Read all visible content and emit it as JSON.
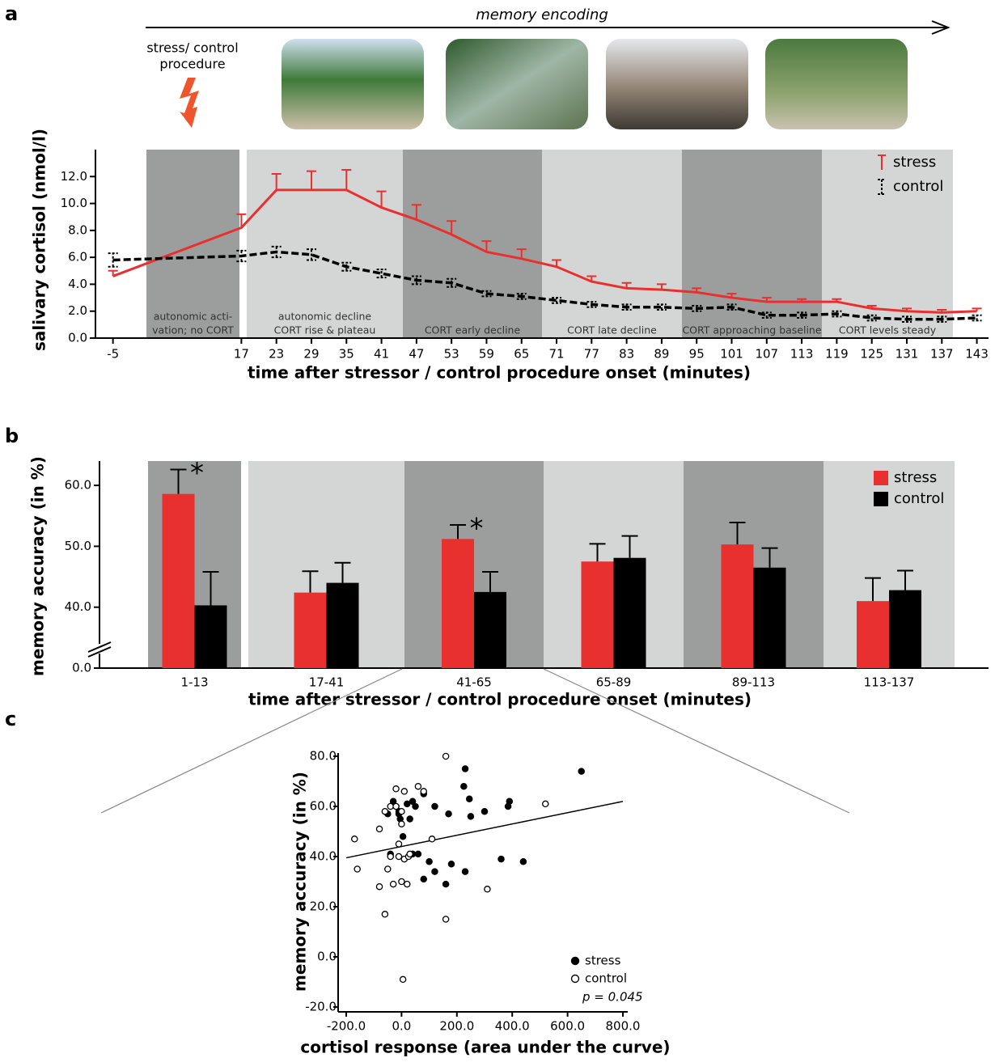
{
  "panel_labels": [
    "a",
    "b",
    "c"
  ],
  "header": {
    "arrow_label": "memory encoding",
    "procedure_label": [
      "stress/ control",
      "procedure"
    ]
  },
  "chart_data": [
    {
      "type": "line",
      "y_label": "salivary cortisol (nmol/l)",
      "x_label": "time after stressor / control procedure onset (minutes)",
      "x": [
        -5,
        17,
        23,
        29,
        35,
        41,
        47,
        53,
        59,
        65,
        71,
        77,
        83,
        89,
        95,
        101,
        107,
        113,
        119,
        125,
        131,
        137,
        143
      ],
      "series": [
        {
          "name": "stress",
          "color": "#e8302f",
          "line_style": "solid",
          "values": [
            4.6,
            8.2,
            11.0,
            11.0,
            11.0,
            9.7,
            8.8,
            7.7,
            6.4,
            5.9,
            5.3,
            4.2,
            3.7,
            3.6,
            3.4,
            3.0,
            2.7,
            2.7,
            2.7,
            2.2,
            2.0,
            1.9,
            2.0
          ],
          "errors": [
            0.4,
            1.0,
            1.2,
            1.4,
            1.5,
            1.2,
            1.1,
            1.0,
            0.8,
            0.7,
            0.5,
            0.4,
            0.4,
            0.4,
            0.3,
            0.3,
            0.3,
            0.2,
            0.2,
            0.2,
            0.2,
            0.2,
            0.2
          ]
        },
        {
          "name": "control",
          "color": "#000000",
          "line_style": "dashed",
          "values": [
            5.8,
            6.1,
            6.4,
            6.2,
            5.3,
            4.8,
            4.3,
            4.1,
            3.3,
            3.1,
            2.8,
            2.5,
            2.3,
            2.3,
            2.2,
            2.3,
            1.7,
            1.7,
            1.8,
            1.5,
            1.4,
            1.4,
            1.5
          ],
          "errors": [
            0.5,
            0.4,
            0.4,
            0.4,
            0.3,
            0.3,
            0.3,
            0.3,
            0.2,
            0.2,
            0.2,
            0.2,
            0.2,
            0.2,
            0.2,
            0.2,
            0.2,
            0.2,
            0.2,
            0.2,
            0.2,
            0.2,
            0.2
          ]
        }
      ],
      "xlim": [
        -8,
        145
      ],
      "ylim": [
        0,
        14
      ],
      "xticks": [
        -5,
        17,
        23,
        29,
        35,
        41,
        47,
        53,
        59,
        65,
        71,
        77,
        83,
        89,
        95,
        101,
        107,
        113,
        119,
        125,
        131,
        137,
        143
      ],
      "yticks": [
        {
          "value": 0,
          "label": "0.0"
        },
        {
          "value": 2,
          "label": "2.0"
        },
        {
          "value": 4,
          "label": "4.0"
        },
        {
          "value": 6,
          "label": "6.0"
        },
        {
          "value": 8,
          "label": "8.0"
        },
        {
          "value": 10,
          "label": "10.0"
        },
        {
          "value": 12,
          "label": "12.0"
        }
      ],
      "phases": [
        [
          "autonomic acti-",
          "vation; no CORT"
        ],
        [
          "autonomic decline",
          "CORT rise & plateau"
        ],
        [
          "CORT early decline"
        ],
        [
          "CORT late decline"
        ],
        [
          "CORT approaching baseline"
        ],
        [
          "CORT levels steady"
        ]
      ],
      "legend": "upper right"
    },
    {
      "type": "bar",
      "y_label": "memory accuracy (in %)",
      "x_label": "time after stressor / control procedure onset (minutes)",
      "categories": [
        "1-13",
        "17-41",
        "41-65",
        "65-89",
        "89-113",
        "113-137"
      ],
      "series": [
        {
          "name": "stress",
          "color": "#e8302f",
          "values": [
            58.6,
            42.4,
            51.2,
            47.5,
            50.3,
            41.0
          ],
          "errors": [
            4.0,
            3.5,
            2.3,
            2.9,
            3.6,
            3.8
          ]
        },
        {
          "name": "control",
          "color": "#000000",
          "values": [
            40.3,
            44.0,
            42.5,
            48.1,
            46.5,
            42.8
          ],
          "errors": [
            5.5,
            3.3,
            3.3,
            3.6,
            3.2,
            3.2
          ]
        }
      ],
      "ylim": [
        0,
        64
      ],
      "axis_break": [
        0,
        30
      ],
      "yticks": [
        {
          "value": 0,
          "label": "0.0"
        },
        {
          "value": 40,
          "label": "40.0"
        },
        {
          "value": 50,
          "label": "50.0"
        },
        {
          "value": 60,
          "label": "60.0"
        }
      ],
      "annotations": [
        "*",
        "*"
      ],
      "legend": "upper right"
    },
    {
      "type": "scatter",
      "y_label": "memory accuracy (in %)",
      "x_label": "cortisol response (area under the curve)",
      "series": [
        {
          "name": "stress",
          "marker": "filled",
          "color": "#000000",
          "x": [
            230,
            225,
            650,
            245,
            390,
            385,
            300,
            250,
            120,
            170,
            -30,
            -20,
            -10,
            -50,
            80,
            40,
            -5,
            50,
            5,
            30,
            -40,
            60,
            40,
            100,
            180,
            120,
            230,
            80,
            160,
            360,
            440,
            20,
            -10
          ],
          "values": [
            75,
            68,
            74,
            63,
            62,
            60,
            58,
            56,
            60,
            57,
            62,
            60,
            57,
            57,
            65,
            62,
            55,
            60,
            48,
            55,
            41,
            41,
            41,
            38,
            37,
            34,
            34,
            31,
            29,
            39,
            38,
            61,
            58
          ]
        },
        {
          "name": "control",
          "marker": "open",
          "color": "#000000",
          "x": [
            160,
            -20,
            10,
            60,
            80,
            -60,
            -40,
            0,
            -20,
            0,
            -80,
            -170,
            110,
            520,
            -10,
            -40,
            -10,
            10,
            25,
            -160,
            -50,
            -80,
            -30,
            0,
            20,
            310,
            -60,
            160,
            5,
            30
          ],
          "values": [
            80,
            67,
            66,
            68,
            66,
            58,
            60,
            58,
            60,
            53,
            51,
            47,
            47,
            61,
            45,
            40,
            40,
            39,
            40,
            35,
            35,
            28,
            29,
            30,
            29,
            27,
            17,
            15,
            -9,
            41
          ]
        }
      ],
      "fit": {
        "x": [
          -200,
          800
        ],
        "y": [
          39.5,
          62
        ]
      },
      "xlim": [
        -200,
        800
      ],
      "ylim": [
        -20,
        80
      ],
      "xticks": [
        {
          "value": -200,
          "label": "-200.0"
        },
        {
          "value": 0,
          "label": "0.0"
        },
        {
          "value": 200,
          "label": "200.0"
        },
        {
          "value": 400,
          "label": "400.0"
        },
        {
          "value": 600,
          "label": "600.0"
        },
        {
          "value": 800,
          "label": "800.0"
        }
      ],
      "yticks": [
        {
          "value": -20,
          "label": "-20.0"
        },
        {
          "value": 0,
          "label": "0.0"
        },
        {
          "value": 20,
          "label": "20.0"
        },
        {
          "value": 40,
          "label": "40.0"
        },
        {
          "value": 60,
          "label": "60.0"
        },
        {
          "value": 80,
          "label": "80.0"
        }
      ],
      "annotation": "p = 0.045",
      "legend": "lower right"
    }
  ]
}
